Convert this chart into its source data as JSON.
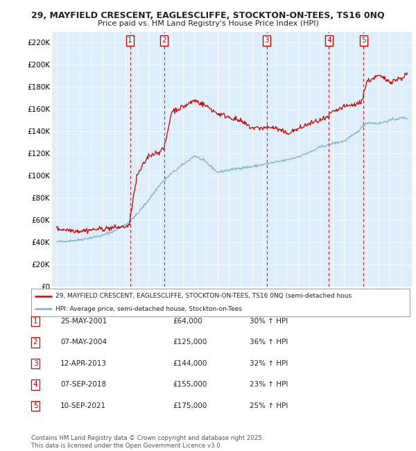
{
  "title_line1": "29, MAYFIELD CRESCENT, EAGLESCLIFFE, STOCKTON-ON-TEES, TS16 0NQ",
  "title_line2": "Price paid vs. HM Land Registry's House Price Index (HPI)",
  "ylim": [
    0,
    230000
  ],
  "yticks": [
    0,
    20000,
    40000,
    60000,
    80000,
    100000,
    120000,
    140000,
    160000,
    180000,
    200000,
    220000
  ],
  "ytick_labels": [
    "£0",
    "£20K",
    "£40K",
    "£60K",
    "£80K",
    "£100K",
    "£120K",
    "£140K",
    "£160K",
    "£180K",
    "£200K",
    "£220K"
  ],
  "sale_color": "#cc0000",
  "hpi_color": "#7bafd4",
  "plot_bg": "#ddeeff",
  "sale_markers": [
    {
      "year": 2001.39,
      "price": 64000,
      "label": "1"
    },
    {
      "year": 2004.35,
      "price": 125000,
      "label": "2"
    },
    {
      "year": 2013.28,
      "price": 144000,
      "label": "3"
    },
    {
      "year": 2018.68,
      "price": 155000,
      "label": "4"
    },
    {
      "year": 2021.69,
      "price": 175000,
      "label": "5"
    }
  ],
  "legend_line1": "29, MAYFIELD CRESCENT, EAGLESCLIFFE, STOCKTON-ON-TEES, TS16 0NQ (semi-detached hous",
  "legend_line2": "HPI: Average price, semi-detached house, Stockton-on-Tees",
  "table_entries": [
    {
      "num": "1",
      "date": "25-MAY-2001",
      "price": "£64,000",
      "hpi": "30% ↑ HPI"
    },
    {
      "num": "2",
      "date": "07-MAY-2004",
      "price": "£125,000",
      "hpi": "36% ↑ HPI"
    },
    {
      "num": "3",
      "date": "12-APR-2013",
      "price": "£144,000",
      "hpi": "32% ↑ HPI"
    },
    {
      "num": "4",
      "date": "07-SEP-2018",
      "price": "£155,000",
      "hpi": "23% ↑ HPI"
    },
    {
      "num": "5",
      "date": "10-SEP-2021",
      "price": "£175,000",
      "hpi": "25% ↑ HPI"
    }
  ],
  "footer": "Contains HM Land Registry data © Crown copyright and database right 2025.\nThis data is licensed under the Open Government Licence v3.0.",
  "xstart": 1995,
  "xend": 2025
}
